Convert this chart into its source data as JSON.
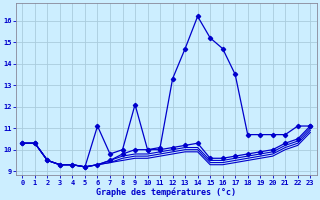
{
  "xlabel": "Graphe des températures (°c)",
  "bg_color": "#cceeff",
  "grid_color": "#aaccdd",
  "line_color": "#0000cc",
  "xlim": [
    -0.5,
    23.5
  ],
  "ylim": [
    8.8,
    16.8
  ],
  "yticks": [
    9,
    10,
    11,
    12,
    13,
    14,
    15,
    16
  ],
  "xticks": [
    0,
    1,
    2,
    3,
    4,
    5,
    6,
    7,
    8,
    9,
    10,
    11,
    12,
    13,
    14,
    15,
    16,
    17,
    18,
    19,
    20,
    21,
    22,
    23
  ],
  "hours": [
    0,
    1,
    2,
    3,
    4,
    5,
    6,
    7,
    8,
    9,
    10,
    11,
    12,
    13,
    14,
    15,
    16,
    17,
    18,
    19,
    20,
    21,
    22,
    23
  ],
  "main_y": [
    10.3,
    10.3,
    9.5,
    9.3,
    9.3,
    9.2,
    11.1,
    9.8,
    10.0,
    12.1,
    10.0,
    10.1,
    13.3,
    14.7,
    16.2,
    15.2,
    14.7,
    13.5,
    10.7,
    10.7,
    10.7,
    10.7,
    11.1,
    11.1
  ],
  "line2_y": [
    10.3,
    10.3,
    9.5,
    9.3,
    9.3,
    9.2,
    9.3,
    9.5,
    9.8,
    10.0,
    10.0,
    10.0,
    10.1,
    10.2,
    10.3,
    9.6,
    9.6,
    9.7,
    9.8,
    9.9,
    10.0,
    10.3,
    10.5,
    11.1
  ],
  "line3_y": [
    10.3,
    10.3,
    9.5,
    9.3,
    9.3,
    9.2,
    9.3,
    9.5,
    9.7,
    9.8,
    9.8,
    9.9,
    10.0,
    10.1,
    10.1,
    9.5,
    9.5,
    9.6,
    9.7,
    9.8,
    9.9,
    10.2,
    10.4,
    11.0
  ],
  "line4_y": [
    10.3,
    10.3,
    9.5,
    9.3,
    9.3,
    9.2,
    9.3,
    9.4,
    9.6,
    9.7,
    9.7,
    9.8,
    9.9,
    10.0,
    10.0,
    9.4,
    9.4,
    9.5,
    9.6,
    9.7,
    9.8,
    10.1,
    10.3,
    10.9
  ],
  "line5_y": [
    10.3,
    10.3,
    9.5,
    9.3,
    9.3,
    9.2,
    9.3,
    9.4,
    9.5,
    9.6,
    9.6,
    9.7,
    9.8,
    9.9,
    9.9,
    9.3,
    9.3,
    9.4,
    9.5,
    9.6,
    9.7,
    10.0,
    10.2,
    10.8
  ]
}
